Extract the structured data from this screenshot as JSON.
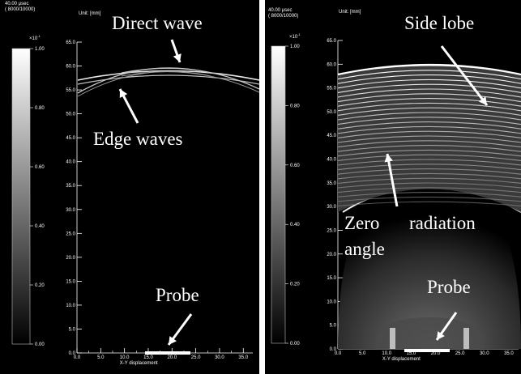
{
  "panels": [
    {
      "id": "left",
      "time_label": "40.00 μsec",
      "frame_label": "( 8000/10000)",
      "unit_label": "Unit: [mm]",
      "scale_exponent": "×10",
      "scale_exponent_power": "-1",
      "colorbar_ticks": [
        "1.00",
        "0.80",
        "0.60",
        "0.40",
        "0.20",
        "0.00"
      ],
      "y_ticks": [
        "65.0",
        "60.0",
        "55.0",
        "50.0",
        "45.0",
        "40.0",
        "35.0",
        "30.0",
        "25.0",
        "20.0",
        "15.0",
        "10.0",
        "5.0",
        "0.0"
      ],
      "x_ticks": [
        "0.0",
        "5.0",
        "10.0",
        "15.0",
        "20.0",
        "25.0",
        "30.0",
        "35.0"
      ],
      "x_axis_label": "X-Y displacement",
      "annotations": {
        "direct_wave": "Direct wave",
        "edge_waves": "Edge waves",
        "probe": "Probe"
      }
    },
    {
      "id": "right",
      "time_label": "40.00 μsec",
      "frame_label": "( 8000/10000)",
      "unit_label": "Unit: [mm]",
      "scale_exponent": "×10",
      "scale_exponent_power": "-1",
      "colorbar_ticks": [
        "1.00",
        "0.80",
        "0.60",
        "0.40",
        "0.20",
        "0.00"
      ],
      "y_ticks": [
        "65.0",
        "60.0",
        "55.0",
        "50.0",
        "45.0",
        "40.0",
        "35.0",
        "30.0",
        "25.0",
        "20.0",
        "15.0",
        "10.0",
        "5.0",
        "0.0"
      ],
      "x_ticks": [
        "0.0",
        "5.0",
        "10.0",
        "15.0",
        "20.0",
        "25.0",
        "30.0",
        "35.0"
      ],
      "x_axis_label": "X-Y displacement",
      "annotations": {
        "side_lobe": "Side lobe",
        "zero": "Zero",
        "angle": "angle",
        "radiation": "radiation",
        "probe": "Probe"
      }
    }
  ],
  "colors": {
    "background": "#000000",
    "foreground": "#ffffff",
    "page": "#ffffff"
  }
}
